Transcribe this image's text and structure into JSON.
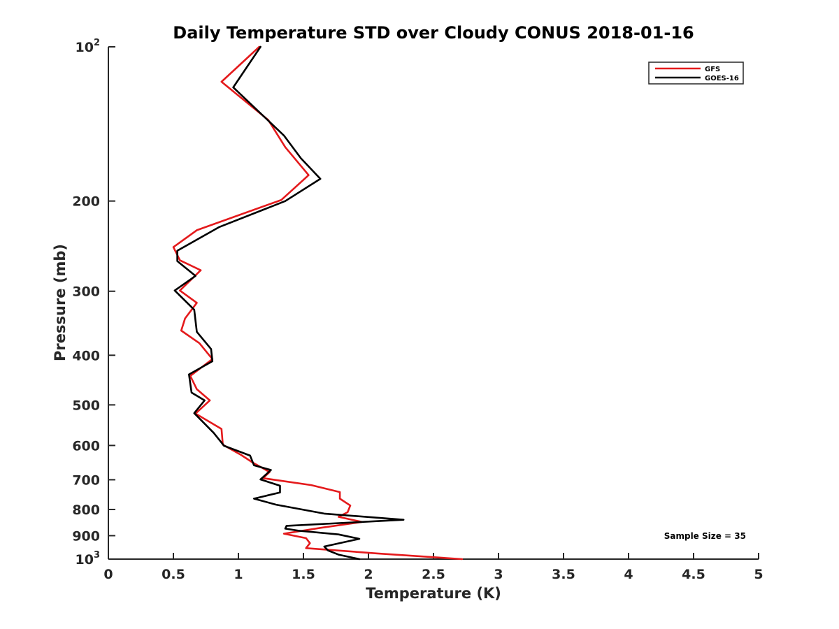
{
  "chart_data": {
    "type": "line",
    "title": "Daily Temperature STD over Cloudy CONUS 2018-01-16",
    "xlabel": "Temperature (K)",
    "ylabel": "Pressure (mb)",
    "xlim": [
      0,
      5
    ],
    "ylim": [
      100,
      1000
    ],
    "y_scale": "log",
    "y_reversed": true,
    "grid": false,
    "legend_position": "top-right",
    "x_ticks": [
      0,
      0.5,
      1,
      1.5,
      2,
      2.5,
      3,
      3.5,
      4,
      4.5,
      5
    ],
    "x_tick_labels": [
      "0",
      "0.5",
      "1",
      "1.5",
      "2",
      "2.5",
      "3",
      "3.5",
      "4",
      "4.5",
      "5"
    ],
    "y_ticks": [
      100,
      200,
      300,
      400,
      500,
      600,
      700,
      800,
      900,
      1000
    ],
    "y_tick_labels": [
      {
        "base": "10",
        "exp": "2"
      },
      {
        "base": "200",
        "exp": ""
      },
      {
        "base": "300",
        "exp": ""
      },
      {
        "base": "400",
        "exp": ""
      },
      {
        "base": "500",
        "exp": ""
      },
      {
        "base": "600",
        "exp": ""
      },
      {
        "base": "700",
        "exp": ""
      },
      {
        "base": "800",
        "exp": ""
      },
      {
        "base": "900",
        "exp": ""
      },
      {
        "base": "10",
        "exp": "3"
      }
    ],
    "annotation": "Sample Size = 35",
    "series": [
      {
        "name": "GFS",
        "color": "#e41a1c",
        "points": [
          [
            1.16,
            100
          ],
          [
            0.87,
            117
          ],
          [
            1.23,
            139
          ],
          [
            1.36,
            157
          ],
          [
            1.54,
            178
          ],
          [
            1.33,
            199
          ],
          [
            0.68,
            228
          ],
          [
            0.5,
            246
          ],
          [
            0.55,
            261
          ],
          [
            0.71,
            273
          ],
          [
            0.55,
            299
          ],
          [
            0.68,
            316
          ],
          [
            0.59,
            339
          ],
          [
            0.56,
            358
          ],
          [
            0.7,
            379
          ],
          [
            0.8,
            407
          ],
          [
            0.63,
            439
          ],
          [
            0.68,
            466
          ],
          [
            0.78,
            490
          ],
          [
            0.67,
            520
          ],
          [
            0.87,
            557
          ],
          [
            0.88,
            598
          ],
          [
            1.02,
            626
          ],
          [
            1.11,
            648
          ],
          [
            1.24,
            676
          ],
          [
            1.19,
            695
          ],
          [
            1.56,
            717
          ],
          [
            1.78,
            740
          ],
          [
            1.78,
            762
          ],
          [
            1.86,
            786
          ],
          [
            1.84,
            810
          ],
          [
            1.77,
            827
          ],
          [
            1.95,
            846
          ],
          [
            1.63,
            869
          ],
          [
            1.35,
            892
          ],
          [
            1.52,
            910
          ],
          [
            1.55,
            931
          ],
          [
            1.52,
            952
          ],
          [
            2.07,
            975
          ],
          [
            2.72,
            1000
          ]
        ]
      },
      {
        "name": "GOES-16",
        "color": "#000000",
        "points": [
          [
            1.17,
            100
          ],
          [
            0.96,
            120
          ],
          [
            1.35,
            149
          ],
          [
            1.48,
            165
          ],
          [
            1.63,
            181
          ],
          [
            1.36,
            200
          ],
          [
            0.85,
            225
          ],
          [
            0.53,
            250
          ],
          [
            0.53,
            262
          ],
          [
            0.67,
            280
          ],
          [
            0.51,
            299
          ],
          [
            0.66,
            326
          ],
          [
            0.68,
            360
          ],
          [
            0.79,
            389
          ],
          [
            0.8,
            411
          ],
          [
            0.62,
            436
          ],
          [
            0.64,
            473
          ],
          [
            0.74,
            490
          ],
          [
            0.66,
            519
          ],
          [
            0.81,
            567
          ],
          [
            0.89,
            601
          ],
          [
            1.09,
            628
          ],
          [
            1.12,
            656
          ],
          [
            1.25,
            670
          ],
          [
            1.17,
            699
          ],
          [
            1.32,
            719
          ],
          [
            1.32,
            741
          ],
          [
            1.12,
            762
          ],
          [
            1.29,
            783
          ],
          [
            1.66,
            815
          ],
          [
            2.27,
            838
          ],
          [
            1.37,
            861
          ],
          [
            1.36,
            872
          ],
          [
            1.46,
            880
          ],
          [
            1.77,
            895
          ],
          [
            1.93,
            913
          ],
          [
            1.66,
            945
          ],
          [
            1.69,
            962
          ],
          [
            1.77,
            980
          ],
          [
            1.93,
            1000
          ]
        ]
      }
    ]
  }
}
